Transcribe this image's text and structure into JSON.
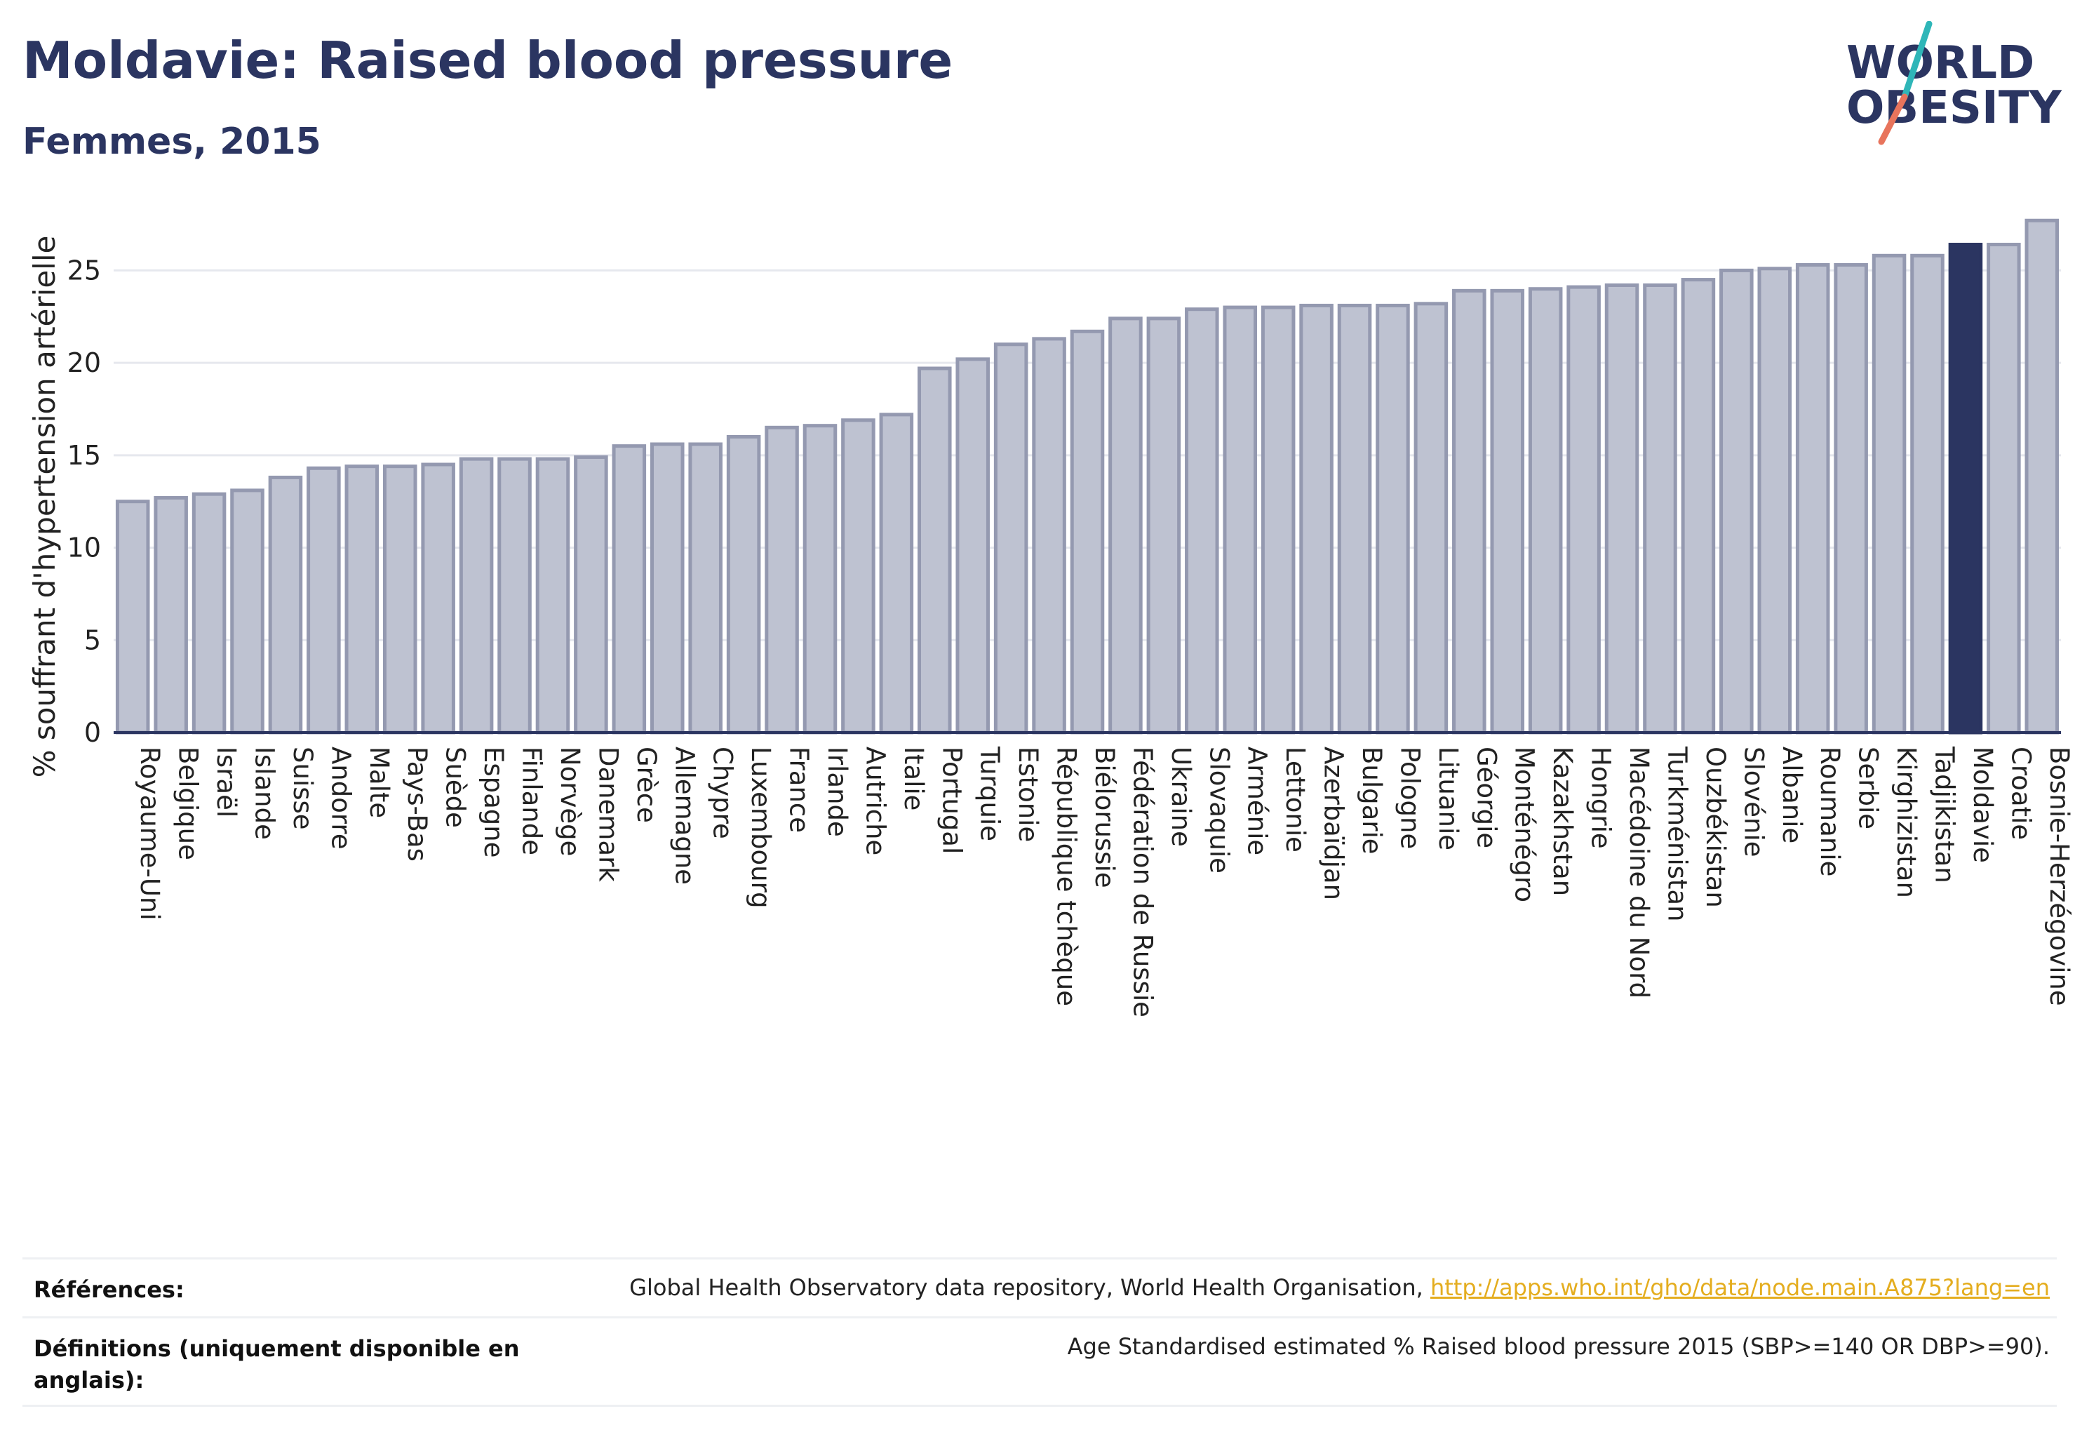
{
  "header": {
    "title": "Moldavie: Raised blood pressure",
    "subtitle": "Femmes, 2015"
  },
  "logo": {
    "line1": "WORLD",
    "line2": "OBESITY",
    "accent_teal": "#2fb6b8",
    "accent_coral": "#e8745c"
  },
  "colors": {
    "bar_fill": "#bec2d1",
    "bar_stroke": "#9499b0",
    "highlight": "#2b3561",
    "grid": "#e6e8ee",
    "axis_text": "#222222"
  },
  "chart_data": {
    "type": "bar",
    "ylabel": "% souffrant d'hypertension artérielle",
    "xlabel": "",
    "ylim": [
      0,
      29
    ],
    "yticks": [
      0,
      5,
      10,
      15,
      20,
      25
    ],
    "grid": true,
    "highlight": "Moldavie",
    "categories": [
      "Royaume-Uni",
      "Belgique",
      "Israël",
      "Islande",
      "Suisse",
      "Andorre",
      "Malte",
      "Pays-Bas",
      "Suède",
      "Espagne",
      "Finlande",
      "Norvège",
      "Danemark",
      "Grèce",
      "Allemagne",
      "Chypre",
      "Luxembourg",
      "France",
      "Irlande",
      "Autriche",
      "Italie",
      "Portugal",
      "Turquie",
      "Estonie",
      "République tchèque",
      "Biélorussie",
      "Fédération de Russie",
      "Ukraine",
      "Slovaquie",
      "Arménie",
      "Lettonie",
      "Azerbaïdjan",
      "Bulgarie",
      "Pologne",
      "Lituanie",
      "Géorgie",
      "Monténégro",
      "Kazakhstan",
      "Hongrie",
      "Macédoine du Nord",
      "Turkménistan",
      "Ouzbékistan",
      "Slovénie",
      "Albanie",
      "Roumanie",
      "Serbie",
      "Kirghizistan",
      "Tadjikistan",
      "Moldavie",
      "Croatie",
      "Bosnie-Herzégovine"
    ],
    "values": [
      12.5,
      12.7,
      12.9,
      13.1,
      13.8,
      14.3,
      14.4,
      14.4,
      14.5,
      14.8,
      14.8,
      14.8,
      14.9,
      15.5,
      15.6,
      15.6,
      16.0,
      16.5,
      16.6,
      16.9,
      17.2,
      19.7,
      20.2,
      21.0,
      21.3,
      21.7,
      22.4,
      22.4,
      22.9,
      23.0,
      23.0,
      23.1,
      23.1,
      23.1,
      23.2,
      23.9,
      23.9,
      24.0,
      24.1,
      24.2,
      24.2,
      24.5,
      25.0,
      25.1,
      25.3,
      25.3,
      25.8,
      25.8,
      26.4,
      26.4,
      27.7
    ]
  },
  "footer": {
    "references_label": "Références:",
    "references_text": "Global Health Observatory data repository, World Health Organisation, ",
    "references_link": "http://apps.who.int/gho/data/node.main.A875?lang=en",
    "definitions_label_1": "Définitions (uniquement disponible en",
    "definitions_label_2": "anglais):",
    "definitions_text": "Age Standardised estimated % Raised blood pressure 2015 (SBP>=140 OR DBP>=90)."
  }
}
